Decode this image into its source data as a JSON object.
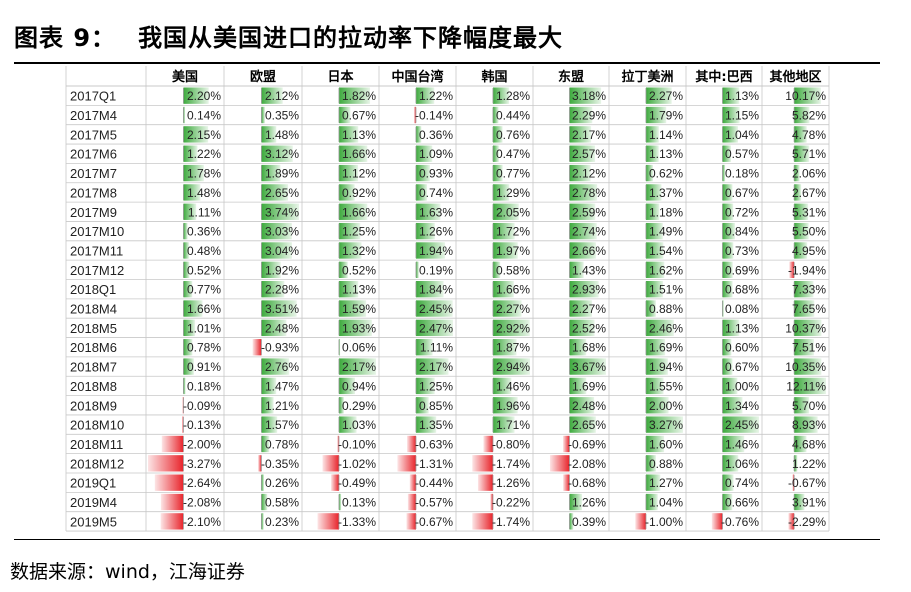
{
  "title": {
    "number": "图表 9：",
    "text": "我国从美国进口的拉动率下降幅度最大"
  },
  "source": "数据来源：wind，江海证券",
  "colors": {
    "positive": "#3daa3d",
    "negative": "#e8242b",
    "grid": "#c8c8c8"
  },
  "chart_data": {
    "type": "table",
    "columns": [
      "美国",
      "欧盟",
      "日本",
      "中国台湾",
      "韩国",
      "东盟",
      "拉丁美洲",
      "其中:巴西",
      "其他地区"
    ],
    "rows": [
      "2017Q1",
      "2017M4",
      "2017M5",
      "2017M6",
      "2017M7",
      "2017M8",
      "2017M9",
      "2017M10",
      "2017M11",
      "2017M12",
      "2018Q1",
      "2018M4",
      "2018M5",
      "2018M6",
      "2018M7",
      "2018M8",
      "2018M9",
      "2018M10",
      "2018M11",
      "2018M12",
      "2019Q1",
      "2019M4",
      "2019M5"
    ],
    "values": [
      [
        2.2,
        2.12,
        1.82,
        1.22,
        1.28,
        3.18,
        2.27,
        1.13,
        10.17
      ],
      [
        0.14,
        0.35,
        0.67,
        -0.14,
        0.44,
        2.29,
        1.79,
        1.15,
        5.82
      ],
      [
        2.15,
        1.48,
        1.13,
        0.36,
        0.76,
        2.17,
        1.14,
        1.04,
        4.78
      ],
      [
        1.22,
        3.12,
        1.66,
        1.09,
        0.47,
        2.57,
        1.13,
        0.57,
        5.71
      ],
      [
        1.78,
        1.89,
        1.12,
        0.93,
        0.77,
        2.12,
        0.62,
        0.18,
        2.06
      ],
      [
        1.48,
        2.65,
        0.92,
        0.74,
        1.29,
        2.78,
        1.37,
        0.67,
        2.67
      ],
      [
        1.11,
        3.74,
        1.66,
        1.63,
        2.05,
        2.59,
        1.18,
        0.72,
        5.31
      ],
      [
        0.36,
        3.03,
        1.25,
        1.26,
        1.72,
        2.74,
        1.49,
        0.84,
        5.5
      ],
      [
        0.48,
        3.04,
        1.32,
        1.94,
        1.97,
        2.66,
        1.54,
        0.73,
        4.95
      ],
      [
        0.52,
        1.92,
        0.52,
        0.19,
        0.58,
        1.43,
        1.62,
        0.69,
        -1.94
      ],
      [
        0.77,
        2.28,
        1.13,
        1.84,
        1.66,
        2.93,
        1.51,
        0.68,
        7.33
      ],
      [
        1.66,
        3.51,
        1.59,
        2.45,
        2.27,
        2.27,
        0.88,
        0.08,
        7.65
      ],
      [
        1.01,
        2.48,
        1.93,
        2.47,
        2.92,
        2.52,
        2.46,
        1.13,
        10.37
      ],
      [
        0.78,
        -0.93,
        0.06,
        1.11,
        1.87,
        1.68,
        1.69,
        0.6,
        7.51
      ],
      [
        0.91,
        2.76,
        2.17,
        2.17,
        2.94,
        3.67,
        1.94,
        0.67,
        10.35
      ],
      [
        0.18,
        1.47,
        0.94,
        1.25,
        1.46,
        1.69,
        1.55,
        1.0,
        12.11
      ],
      [
        -0.09,
        1.21,
        0.29,
        0.85,
        1.96,
        2.48,
        2.0,
        1.34,
        5.7
      ],
      [
        -0.13,
        1.57,
        1.03,
        1.35,
        1.71,
        2.65,
        3.27,
        2.45,
        8.93
      ],
      [
        -2.0,
        0.78,
        -0.1,
        -0.63,
        -0.8,
        -0.69,
        1.6,
        1.46,
        4.68
      ],
      [
        -3.27,
        -0.35,
        -1.02,
        -1.31,
        -1.74,
        -2.08,
        0.88,
        1.06,
        1.22
      ],
      [
        -2.64,
        0.26,
        -0.49,
        -0.44,
        -1.26,
        -0.68,
        1.27,
        0.74,
        -0.67
      ],
      [
        -2.08,
        0.58,
        0.13,
        -0.57,
        -0.22,
        1.26,
        1.04,
        0.66,
        3.91
      ],
      [
        -2.1,
        0.23,
        -1.33,
        -0.67,
        -1.74,
        0.39,
        -1.0,
        -0.76,
        -2.29
      ]
    ],
    "labels": [
      [
        "2.20",
        "2.12",
        "1.82",
        "1.22",
        "1.28",
        "3.18",
        "2.27",
        "1.13",
        "10.17"
      ],
      [
        "0.14",
        "0.35",
        "0.67",
        "-0.14",
        "0.44",
        "2.29",
        "1.79",
        "1.15",
        "5.82"
      ],
      [
        "2.15",
        "1.48",
        "1.13",
        "0.36",
        "0.76",
        "2.17",
        "1.14",
        "1.04",
        "4.78"
      ],
      [
        "1.22",
        "3.12",
        "1.66",
        "1.09",
        "0.47",
        "2.57",
        "1.13",
        "0.57",
        "5.71"
      ],
      [
        "1.78",
        "1.89",
        "1.12",
        "0.93",
        "0.77",
        "2.12",
        "0.62",
        "0.18",
        "2.06"
      ],
      [
        "1.48",
        "2.65",
        "0.92",
        "0.74",
        "1.29",
        "2.78",
        "1.37",
        "0.67",
        "2.67"
      ],
      [
        "1.11",
        "3.74",
        "1.66",
        "1.63",
        "2.05",
        "2.59",
        "1.18",
        "0.72",
        "5.31"
      ],
      [
        "0.36",
        "3.03",
        "1.25",
        "1.26",
        "1.72",
        "2.74",
        "1.49",
        "0.84",
        "5.50"
      ],
      [
        "0.48",
        "3.04",
        "1.32",
        "1.94",
        "1.97",
        "2.66",
        "1.54",
        "0.73",
        "4.95"
      ],
      [
        "0.52",
        "1.92",
        "0.52",
        "0.19",
        "0.58",
        "1.43",
        "1.62",
        "0.69",
        "-1.94"
      ],
      [
        "0.77",
        "2.28",
        "1.13",
        "1.84",
        "1.66",
        "2.93",
        "1.51",
        "0.68",
        "7.33"
      ],
      [
        "1.66",
        "3.51",
        "1.59",
        "2.45",
        "2.27",
        "2.27",
        "0.88",
        "0.08",
        "7.65"
      ],
      [
        "1.01",
        "2.48",
        "1.93",
        "2.47",
        "2.92",
        "2.52",
        "2.46",
        "1.13",
        "10.37"
      ],
      [
        "0.78",
        "-0.93",
        "0.06",
        "1.11",
        "1.87",
        "1.68",
        "1.69",
        "0.60",
        "7.51"
      ],
      [
        "0.91",
        "2.76",
        "2.17",
        "2.17",
        "2.94",
        "3.67",
        "1.94",
        "0.67",
        "10.35"
      ],
      [
        "0.18",
        "1.47",
        "0.94",
        "1.25",
        "1.46",
        "1.69",
        "1.55",
        "1.00",
        "12.11"
      ],
      [
        "-0.09",
        "1.21",
        "0.29",
        "0.85",
        "1.96",
        "2.48",
        "2.00",
        "1.34",
        "5.70"
      ],
      [
        "-0.13",
        "1.57",
        "1.03",
        "1.35",
        "1.71",
        "2.65",
        "3.27",
        "2.45",
        "8.93"
      ],
      [
        "-2.00",
        "0.78",
        "-0.10",
        "-0.63",
        "-0.80",
        "-0.69",
        "1.60",
        "1.46",
        "4.68"
      ],
      [
        "-3.27",
        "-0.35",
        "-1.02",
        "-1.31",
        "-1.74",
        "-2.08",
        "0.88",
        "1.06",
        "1.22"
      ],
      [
        "-2.64",
        "0.26",
        "-0.49",
        "-0.44",
        "-1.26",
        "-0.68",
        "1.27",
        "0.74",
        "-0.67"
      ],
      [
        "-2.08",
        "0.58",
        "0.13",
        "-0.57",
        "-0.22",
        "1.26",
        "1.04",
        "0.66",
        "3.91"
      ],
      [
        "-2.10",
        "0.23",
        "-1.33",
        "-0.67",
        "-1.74",
        "0.39",
        "-1.00",
        "-0.76",
        "-2.29"
      ]
    ],
    "unit_suffix": "%"
  }
}
